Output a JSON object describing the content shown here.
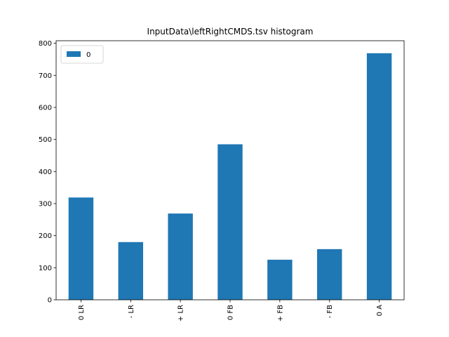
{
  "chart_data": {
    "type": "bar",
    "title": "InputData\\leftRightCMDS.tsv histogram",
    "categories": [
      "0 LR",
      "- LR",
      "+ LR",
      "0 FB",
      "+ FB",
      "- FB",
      "0 A"
    ],
    "series": [
      {
        "name": "0",
        "values": [
          319,
          180,
          269,
          485,
          125,
          158,
          769
        ],
        "color": "#1f77b4"
      }
    ],
    "xlabel": "",
    "ylabel": "",
    "ylim": [
      0,
      808
    ],
    "yticks": [
      0,
      100,
      200,
      300,
      400,
      500,
      600,
      700,
      800
    ],
    "grid": false,
    "legend_position": "top-left"
  }
}
